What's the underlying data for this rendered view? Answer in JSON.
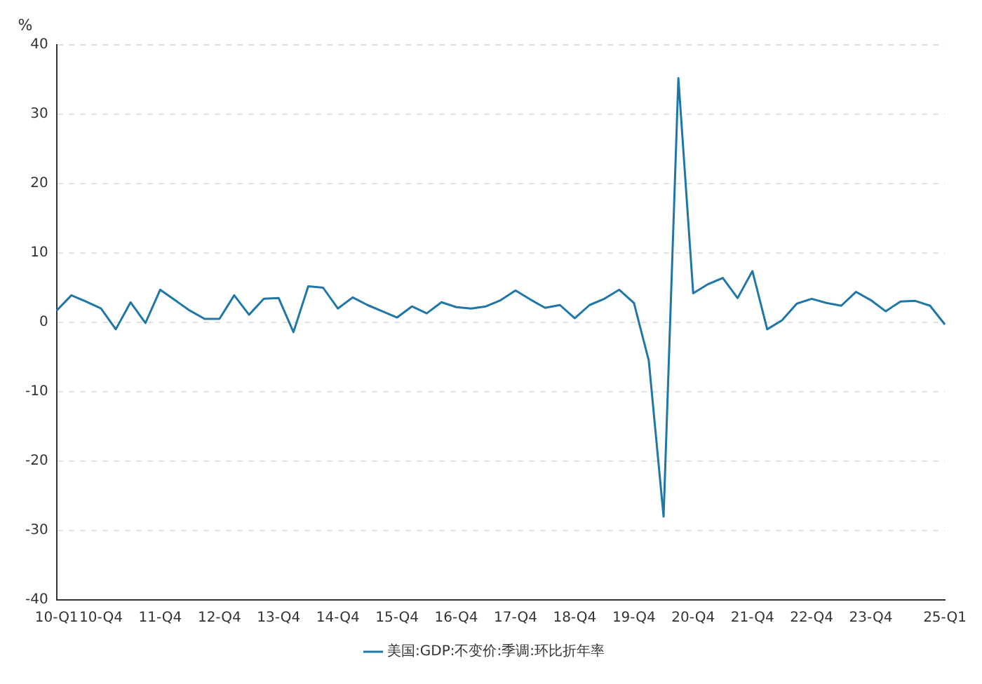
{
  "chart_data": {
    "type": "line",
    "ylabel": "%",
    "categories": [
      "10-Q1",
      null,
      null,
      "10-Q4",
      null,
      null,
      null,
      "11-Q4",
      null,
      null,
      null,
      "12-Q4",
      null,
      null,
      null,
      "13-Q4",
      null,
      null,
      null,
      "14-Q4",
      null,
      null,
      null,
      "15-Q4",
      null,
      null,
      null,
      "16-Q4",
      null,
      null,
      null,
      "17-Q4",
      null,
      null,
      null,
      "18-Q4",
      null,
      null,
      null,
      "19-Q4",
      null,
      null,
      null,
      "20-Q4",
      null,
      null,
      null,
      "21-Q4",
      null,
      null,
      null,
      "22-Q4",
      null,
      null,
      null,
      "23-Q4",
      null,
      null,
      null,
      null,
      "25-Q1"
    ],
    "series": [
      {
        "name": "美国:GDP:不变价:季调:环比折年率",
        "color": "#1f77a8",
        "values": [
          1.7,
          3.9,
          3.0,
          2.0,
          -1.0,
          2.9,
          -0.1,
          4.7,
          3.2,
          1.7,
          0.5,
          0.5,
          3.9,
          1.1,
          3.4,
          3.5,
          -1.4,
          5.2,
          5.0,
          2.0,
          3.6,
          2.5,
          1.6,
          0.7,
          2.3,
          1.3,
          2.9,
          2.2,
          2.0,
          2.3,
          3.2,
          4.6,
          3.3,
          2.1,
          2.5,
          0.6,
          2.5,
          3.4,
          4.7,
          2.8,
          -5.5,
          -28.0,
          35.2,
          4.2,
          5.5,
          6.4,
          3.5,
          7.4,
          -1.0,
          0.3,
          2.7,
          3.4,
          2.8,
          2.4,
          4.4,
          3.2,
          1.6,
          3.0,
          3.1,
          2.4,
          -0.3
        ]
      }
    ],
    "ylim": [
      -40,
      40
    ],
    "yticks": [
      -40,
      -30,
      -20,
      -10,
      0,
      10,
      20,
      30,
      40
    ],
    "grid": "y",
    "legend": "bottom",
    "marker": "none",
    "line_style": "solid"
  }
}
